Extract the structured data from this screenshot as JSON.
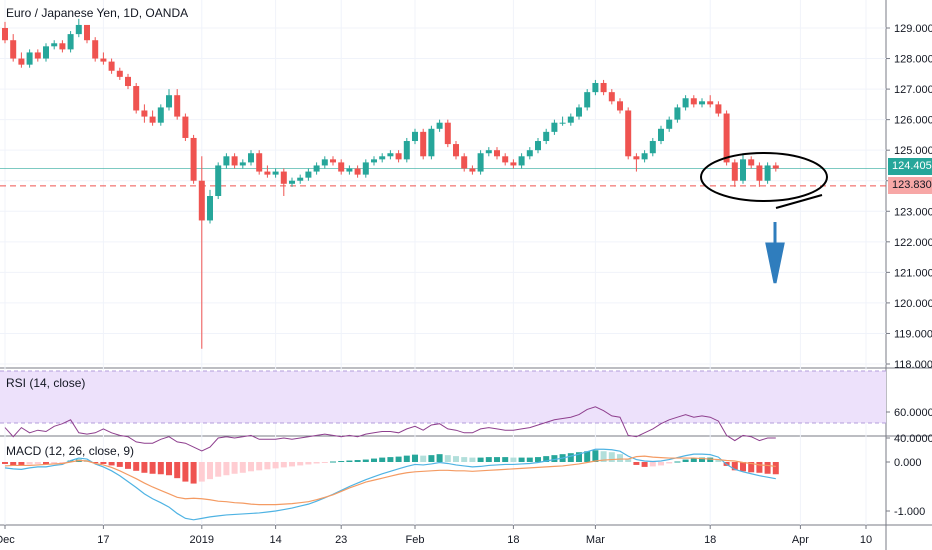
{
  "header": {
    "title": "Euro / Japanese Yen, 1D, OANDA"
  },
  "rsi": {
    "label": "RSI (14, close)"
  },
  "macd_panel": {
    "label": "MACD (12, 26, close, 9)"
  },
  "price_tags": {
    "current": {
      "value": "124.405",
      "color": "#26a69a"
    },
    "support": {
      "value": "123.830",
      "color": "#ef5350"
    }
  },
  "colors": {
    "up": "#26a69a",
    "down": "#ef5350",
    "rsi_band": "#ede1fb",
    "rsi_line": "#8e3f8e",
    "macd_line": "#4fb3e3",
    "signal_line": "#f49b63",
    "annotation": "#2f7dbd"
  },
  "chart_data": [
    {
      "type": "candlestick",
      "title": "Euro / Japanese Yen, 1D, OANDA",
      "ylim": [
        117.8,
        129.6
      ],
      "y_ticks": [
        "118.000",
        "119.000",
        "120.000",
        "121.000",
        "122.000",
        "123.000",
        "124.000",
        "125.000",
        "126.000",
        "127.000",
        "128.000",
        "129.000"
      ],
      "x_tick_labels": [
        "Dec",
        "17",
        "2019",
        "14",
        "23",
        "Feb",
        "18",
        "Mar",
        "18",
        "Apr",
        "10"
      ],
      "open": [
        129.0,
        128.6,
        128.0,
        127.8,
        128.2,
        128.0,
        128.4,
        128.5,
        128.3,
        128.8,
        129.1,
        128.6,
        128.0,
        127.9,
        127.6,
        127.4,
        127.1,
        126.3,
        126.1,
        125.9,
        126.4,
        126.8,
        126.1,
        125.4,
        124.0,
        122.7,
        123.5,
        124.5,
        124.8,
        124.5,
        124.6,
        124.9,
        124.3,
        124.2,
        124.3,
        123.9,
        124.0,
        124.1,
        124.3,
        124.5,
        124.7,
        124.6,
        124.3,
        124.4,
        124.2,
        124.6,
        124.7,
        124.8,
        124.9,
        124.7,
        125.3,
        125.6,
        124.8,
        125.7,
        125.9,
        125.2,
        124.8,
        124.4,
        124.3,
        124.9,
        125.0,
        124.8,
        124.6,
        124.5,
        124.8,
        125.0,
        125.3,
        125.6,
        125.9,
        125.9,
        126.1,
        126.4,
        126.9,
        127.2,
        126.9,
        126.6,
        126.3,
        124.8,
        124.7,
        124.9,
        125.3,
        125.7,
        126.0,
        126.4,
        126.7,
        126.5,
        126.6,
        126.5,
        126.2,
        124.6,
        124.0,
        124.7,
        124.5,
        124.0,
        124.5
      ],
      "close": [
        128.6,
        128.0,
        127.8,
        128.2,
        128.0,
        128.4,
        128.5,
        128.3,
        128.8,
        129.1,
        128.6,
        128.0,
        127.9,
        127.6,
        127.4,
        127.1,
        126.3,
        126.1,
        125.9,
        126.4,
        126.8,
        126.1,
        125.4,
        124.0,
        122.7,
        123.5,
        124.5,
        124.8,
        124.5,
        124.6,
        124.9,
        124.3,
        124.2,
        124.3,
        123.9,
        124.0,
        124.1,
        124.3,
        124.5,
        124.7,
        124.6,
        124.3,
        124.4,
        124.2,
        124.6,
        124.7,
        124.8,
        124.9,
        124.7,
        125.3,
        125.6,
        124.8,
        125.7,
        125.9,
        125.2,
        124.8,
        124.4,
        124.3,
        124.9,
        125.0,
        124.8,
        124.6,
        124.5,
        124.8,
        125.0,
        125.3,
        125.6,
        125.9,
        125.9,
        126.1,
        126.4,
        126.9,
        127.2,
        126.9,
        126.6,
        126.3,
        124.8,
        124.7,
        124.9,
        125.3,
        125.7,
        126.0,
        126.4,
        126.7,
        126.5,
        126.6,
        126.5,
        126.2,
        124.6,
        124.0,
        124.7,
        124.5,
        124.0,
        124.5,
        124.4
      ],
      "high": [
        129.2,
        128.8,
        128.2,
        128.3,
        128.3,
        128.5,
        128.6,
        128.6,
        128.9,
        129.3,
        129.1,
        128.7,
        128.2,
        128.0,
        127.7,
        127.5,
        127.2,
        126.5,
        126.3,
        126.5,
        127.0,
        127.0,
        126.2,
        125.5,
        124.8,
        123.7,
        124.6,
        124.9,
        124.9,
        124.7,
        125.0,
        125.0,
        124.5,
        124.4,
        124.4,
        124.1,
        124.2,
        124.4,
        124.6,
        124.8,
        124.8,
        124.7,
        124.5,
        124.5,
        124.7,
        124.8,
        124.9,
        125.0,
        125.0,
        125.4,
        125.7,
        125.7,
        125.8,
        126.0,
        126.0,
        125.3,
        124.9,
        124.5,
        125.0,
        125.1,
        125.1,
        124.9,
        124.7,
        124.9,
        125.1,
        125.4,
        125.7,
        126.0,
        126.1,
        126.2,
        126.5,
        127.0,
        127.3,
        127.3,
        127.0,
        126.7,
        126.4,
        124.9,
        125.0,
        125.4,
        125.8,
        126.1,
        126.5,
        126.8,
        126.8,
        126.7,
        126.8,
        126.6,
        126.3,
        124.7,
        124.9,
        124.8,
        124.6,
        124.6,
        124.6
      ],
      "low": [
        128.5,
        127.9,
        127.7,
        127.7,
        127.9,
        127.9,
        128.3,
        128.2,
        128.2,
        128.7,
        128.5,
        127.9,
        127.8,
        127.5,
        127.3,
        127.0,
        126.2,
        125.9,
        125.8,
        125.8,
        126.3,
        126.0,
        125.3,
        123.9,
        118.5,
        122.6,
        123.4,
        124.4,
        124.4,
        124.4,
        124.5,
        124.2,
        124.1,
        124.1,
        123.5,
        123.8,
        123.9,
        124.0,
        124.2,
        124.4,
        124.5,
        124.2,
        124.2,
        124.1,
        124.1,
        124.5,
        124.6,
        124.7,
        124.6,
        124.6,
        125.2,
        124.7,
        124.7,
        125.6,
        125.1,
        124.7,
        124.3,
        124.2,
        124.2,
        124.8,
        124.7,
        124.5,
        124.4,
        124.4,
        124.7,
        124.9,
        125.2,
        125.5,
        125.8,
        125.8,
        126.0,
        126.3,
        126.8,
        126.8,
        126.5,
        126.2,
        124.7,
        124.3,
        124.6,
        124.8,
        125.2,
        125.6,
        125.9,
        126.3,
        126.4,
        126.4,
        126.4,
        126.1,
        124.5,
        123.8,
        123.9,
        124.4,
        123.8,
        123.9,
        124.3
      ]
    },
    {
      "type": "line",
      "title": "RSI (14, close)",
      "ylim": [
        26,
        74
      ],
      "y_ticks": [
        "40.0000",
        "60.0000"
      ],
      "series": [
        {
          "values": [
            48,
            41,
            48,
            44,
            46,
            45,
            49,
            51,
            54,
            44,
            43,
            44,
            47,
            44,
            42,
            41,
            37,
            36,
            36,
            39,
            41,
            37,
            36,
            33,
            30,
            33,
            40,
            41,
            40,
            41,
            42,
            39,
            39,
            39,
            40,
            39,
            40,
            41,
            42,
            43,
            42,
            41,
            42,
            41,
            43,
            44,
            45,
            45,
            44,
            47,
            49,
            46,
            50,
            51,
            47,
            46,
            44,
            44,
            47,
            48,
            47,
            46,
            46,
            47,
            48,
            50,
            52,
            54,
            55,
            56,
            58,
            62,
            64,
            61,
            57,
            56,
            42,
            41,
            44,
            47,
            51,
            54,
            56,
            58,
            56,
            57,
            56,
            53,
            42,
            38,
            42,
            41,
            38,
            40,
            40
          ]
        }
      ]
    },
    {
      "type": "bar+line",
      "title": "MACD (12, 26, close, 9)",
      "ylim": [
        -1.2,
        0.3
      ],
      "y_ticks": [
        "0.000",
        "-1.000"
      ],
      "series": [
        {
          "values": [
            -0.04,
            -0.07,
            -0.08,
            -0.05,
            -0.04,
            -0.05,
            -0.03,
            -0.02,
            0.03,
            0.05,
            0.04,
            -0.01,
            -0.04,
            -0.07,
            -0.1,
            -0.14,
            -0.18,
            -0.22,
            -0.24,
            -0.25,
            -0.27,
            -0.33,
            -0.4,
            -0.44,
            -0.4,
            -0.35,
            -0.3,
            -0.27,
            -0.24,
            -0.22,
            -0.19,
            -0.17,
            -0.15,
            -0.13,
            -0.11,
            -0.09,
            -0.07,
            -0.05,
            -0.03,
            -0.01,
            0.01,
            0.02,
            0.03,
            0.04,
            0.05,
            0.07,
            0.09,
            0.1,
            0.11,
            0.13,
            0.15,
            0.13,
            0.14,
            0.16,
            0.14,
            0.12,
            0.1,
            0.09,
            0.09,
            0.1,
            0.1,
            0.1,
            0.09,
            0.09,
            0.09,
            0.1,
            0.12,
            0.14,
            0.16,
            0.18,
            0.2,
            0.22,
            0.24,
            0.22,
            0.2,
            0.16,
            0.06,
            -0.06,
            -0.1,
            -0.09,
            -0.07,
            -0.03,
            0.01,
            0.05,
            0.08,
            0.09,
            0.09,
            0.05,
            -0.08,
            -0.17,
            -0.19,
            -0.21,
            -0.22,
            -0.24,
            -0.25
          ]
        },
        {
          "values": [
            -0.12,
            -0.14,
            -0.15,
            -0.12,
            -0.1,
            -0.1,
            -0.07,
            -0.05,
            0.03,
            0.08,
            0.06,
            -0.04,
            -0.1,
            -0.18,
            -0.28,
            -0.4,
            -0.52,
            -0.65,
            -0.75,
            -0.83,
            -0.92,
            -1.05,
            -1.15,
            -1.18,
            -1.15,
            -1.12,
            -1.1,
            -1.08,
            -1.07,
            -1.06,
            -1.05,
            -1.04,
            -1.02,
            -1.0,
            -0.97,
            -0.94,
            -0.9,
            -0.86,
            -0.8,
            -0.73,
            -0.66,
            -0.58,
            -0.5,
            -0.43,
            -0.36,
            -0.3,
            -0.24,
            -0.19,
            -0.14,
            -0.09,
            -0.05,
            -0.06,
            -0.04,
            -0.01,
            -0.03,
            -0.06,
            -0.08,
            -0.1,
            -0.09,
            -0.07,
            -0.06,
            -0.05,
            -0.05,
            -0.04,
            -0.03,
            -0.01,
            0.02,
            0.05,
            0.08,
            0.12,
            0.16,
            0.21,
            0.26,
            0.26,
            0.25,
            0.22,
            0.12,
            0.05,
            0.02,
            0.01,
            0.02,
            0.05,
            0.09,
            0.13,
            0.16,
            0.16,
            0.15,
            0.1,
            -0.05,
            -0.15,
            -0.2,
            -0.24,
            -0.28,
            -0.31,
            -0.34
          ]
        },
        {
          "values": [
            -0.08,
            -0.07,
            -0.07,
            -0.07,
            -0.06,
            -0.05,
            -0.04,
            -0.03,
            0.0,
            0.03,
            0.02,
            -0.03,
            -0.06,
            -0.11,
            -0.18,
            -0.26,
            -0.34,
            -0.43,
            -0.51,
            -0.58,
            -0.65,
            -0.72,
            -0.75,
            -0.74,
            -0.75,
            -0.77,
            -0.8,
            -0.81,
            -0.83,
            -0.84,
            -0.86,
            -0.87,
            -0.87,
            -0.87,
            -0.86,
            -0.85,
            -0.83,
            -0.81,
            -0.77,
            -0.72,
            -0.67,
            -0.6,
            -0.53,
            -0.47,
            -0.41,
            -0.37,
            -0.33,
            -0.29,
            -0.25,
            -0.22,
            -0.2,
            -0.19,
            -0.18,
            -0.17,
            -0.17,
            -0.18,
            -0.18,
            -0.19,
            -0.18,
            -0.17,
            -0.16,
            -0.15,
            -0.14,
            -0.13,
            -0.12,
            -0.11,
            -0.1,
            -0.09,
            -0.08,
            -0.06,
            -0.04,
            -0.01,
            0.02,
            0.04,
            0.05,
            0.06,
            0.06,
            0.11,
            0.12,
            0.1,
            0.09,
            0.08,
            0.08,
            0.08,
            0.08,
            0.07,
            0.06,
            0.05,
            0.03,
            0.02,
            -0.01,
            -0.03,
            -0.06,
            -0.07,
            -0.09
          ]
        }
      ]
    }
  ]
}
